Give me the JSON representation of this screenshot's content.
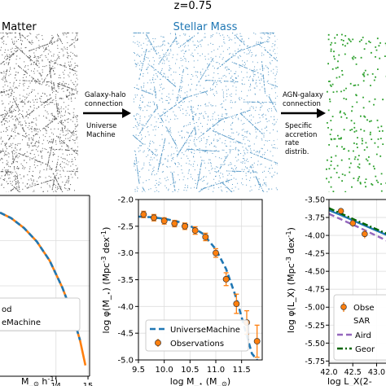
{
  "figure": {
    "redshift_title": "z=0.75",
    "colors": {
      "dark_matter_particles": "#222222",
      "stellar_mass_particles": "#1f77b4",
      "agn_particles": "#2ca02c",
      "model_line": "#1f77b4",
      "observations": "#ff7f0e",
      "hmf_fit": "#ff7f0e",
      "aird_line": "#9467bd",
      "georgakakis_line": "#006400"
    }
  },
  "top_row": {
    "dark_matter": {
      "title": "Matter"
    },
    "stellar_mass": {
      "title": "Stellar Mass"
    },
    "agn": {
      "title": ""
    },
    "arrow_1": {
      "lines": [
        "Galaxy-halo",
        "connection",
        "",
        "Universe",
        "Machine"
      ]
    },
    "arrow_2": {
      "lines": [
        "AGN-galaxy",
        "connection",
        "",
        "Specific",
        "accretion",
        "rate",
        "distrib."
      ]
    }
  },
  "chart_data": [
    {
      "type": "line",
      "panel": "halo-mass-function",
      "xlabel": "M$_\\odot h^{-1}$)",
      "x_ticks": [
        "14",
        "15"
      ],
      "x_tick_values": [
        14,
        15
      ],
      "xlim": [
        12.25,
        15.05
      ],
      "ylim": [
        0,
        1
      ],
      "legend_entries": [
        "od",
        "eMachine"
      ],
      "series": [
        {
          "name": "",
          "style": "solid",
          "x": [
            12.25,
            12.6,
            13.0,
            13.4,
            13.8,
            14.2,
            14.5,
            14.75,
            14.92
          ],
          "y": [
            0.905,
            0.875,
            0.82,
            0.745,
            0.64,
            0.49,
            0.35,
            0.2,
            0.06
          ]
        },
        {
          "name": "",
          "style": "dashed",
          "x": [
            12.25,
            12.6,
            13.0,
            13.4,
            13.8,
            14.2,
            14.5,
            14.75
          ],
          "y": [
            0.905,
            0.875,
            0.82,
            0.745,
            0.64,
            0.49,
            0.35,
            0.2
          ]
        }
      ]
    },
    {
      "type": "line",
      "panel": "stellar-mass-function",
      "xlabel": "log M$_\\star$ (M$_\\odot$)",
      "ylabel": "log $\\phi$(M$_\\star$) (Mpc$^{-3}$ dex$^{-1}$)",
      "x_ticks": [
        "9.5",
        "10.0",
        "10.5",
        "11.0",
        "11.5"
      ],
      "x_tick_values": [
        9.5,
        10.0,
        10.5,
        11.0,
        11.5
      ],
      "y_ticks": [
        "-2.0",
        "-2.5",
        "-3.0",
        "-3.5",
        "-4.0",
        "-4.5",
        "-5.0"
      ],
      "y_tick_values": [
        -2.0,
        -2.5,
        -3.0,
        -3.5,
        -4.0,
        -4.5,
        -5.0
      ],
      "xlim": [
        9.5,
        11.9
      ],
      "ylim": [
        -5.0,
        -2.0
      ],
      "grid": true,
      "legend": "lower-left",
      "series": [
        {
          "name": "UniverseMachine",
          "style": "dashed",
          "x": [
            9.5,
            9.75,
            10.0,
            10.25,
            10.5,
            10.75,
            11.0,
            11.2,
            11.4,
            11.55,
            11.7,
            11.8
          ],
          "y": [
            -2.32,
            -2.33,
            -2.36,
            -2.41,
            -2.49,
            -2.64,
            -2.93,
            -3.3,
            -3.85,
            -4.37,
            -4.88,
            -5.0
          ]
        },
        {
          "name": "Observations",
          "style": "errorbar",
          "x": [
            9.6,
            9.8,
            10.0,
            10.2,
            10.4,
            10.6,
            10.8,
            11.0,
            11.2,
            11.4,
            11.6,
            11.8
          ],
          "y": [
            -2.28,
            -2.34,
            -2.4,
            -2.45,
            -2.5,
            -2.58,
            -2.7,
            -3.0,
            -3.49,
            -3.95,
            -4.3,
            -4.65
          ],
          "err": [
            0.06,
            0.06,
            0.06,
            0.06,
            0.06,
            0.07,
            0.07,
            0.08,
            0.12,
            0.18,
            0.22,
            0.3
          ]
        }
      ]
    },
    {
      "type": "line",
      "panel": "x-ray-luminosity-function",
      "xlabel": "log $L_X$(2$-$",
      "ylabel": "log $\\phi$($L_X$) (Mpc$^{-3}$ dex$^{-1}$)",
      "x_ticks": [
        "42.0",
        "42.5",
        "43.0"
      ],
      "x_tick_values": [
        42.0,
        42.5,
        43.0
      ],
      "y_ticks": [
        "-3.50",
        "-3.75",
        "-4.00",
        "-4.25",
        "-4.50",
        "-4.75",
        "-5.00",
        "-5.25",
        "-5.50",
        "-5.75"
      ],
      "y_tick_values": [
        -3.5,
        -3.75,
        -4.0,
        -4.25,
        -4.5,
        -4.75,
        -5.0,
        -5.25,
        -5.5,
        -5.75
      ],
      "xlim": [
        42.0,
        43.3
      ],
      "ylim": [
        -5.78,
        -3.5
      ],
      "grid": true,
      "legend_entries": [
        "Obse",
        "SAR",
        "Aird",
        "Geor"
      ],
      "series": [
        {
          "name": "",
          "style": "solid",
          "x": [
            42.0,
            42.3,
            42.6,
            43.3
          ],
          "y": [
            -3.65,
            -3.73,
            -3.82,
            -4.02
          ]
        },
        {
          "name": "",
          "style": "dashed",
          "x": [
            42.0,
            42.3,
            42.6,
            43.3
          ],
          "y": [
            -3.7,
            -3.79,
            -3.88,
            -4.1
          ]
        },
        {
          "name": "",
          "style": "dashdot",
          "x": [
            42.0,
            42.3,
            42.6,
            43.3
          ],
          "y": [
            -3.62,
            -3.71,
            -3.8,
            -4.0
          ]
        },
        {
          "name": "",
          "style": "errorbar",
          "x": [
            42.25,
            42.5,
            42.75
          ],
          "y": [
            -3.66,
            -3.83,
            -3.98
          ],
          "err": [
            0.04,
            0.05,
            0.06
          ]
        }
      ]
    }
  ]
}
